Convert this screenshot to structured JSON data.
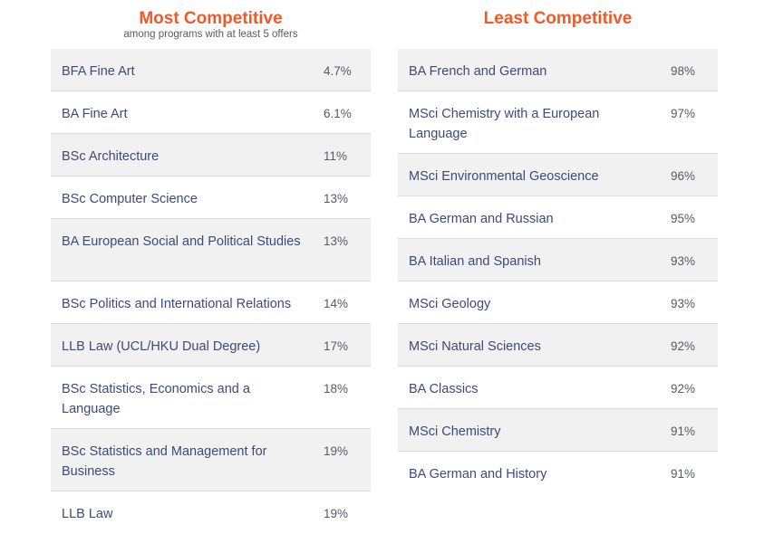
{
  "most": {
    "title": "Most Competitive",
    "subtitle": "among programs with at least 5 offers",
    "rows": [
      {
        "name": "BFA Fine Art",
        "pct": "4.7%"
      },
      {
        "name": "BA Fine Art",
        "pct": "6.1%"
      },
      {
        "name": "BSc Architecture",
        "pct": "11%"
      },
      {
        "name": "BSc Computer Science",
        "pct": "13%"
      },
      {
        "name": "BA European Social and Political Studies",
        "pct": "13%"
      },
      {
        "name": "BSc Politics and International Relations",
        "pct": "14%"
      },
      {
        "name": "LLB Law (UCL/HKU Dual Degree)",
        "pct": "17%"
      },
      {
        "name": "BSc Statistics, Economics and a Language",
        "pct": "18%"
      },
      {
        "name": "BSc Statistics and Management for Business",
        "pct": "19%"
      },
      {
        "name": "LLB Law",
        "pct": "19%"
      }
    ]
  },
  "least": {
    "title": "Least Competitive",
    "rows": [
      {
        "name": "BA French and German",
        "pct": "98%"
      },
      {
        "name": "MSci Chemistry with a European Language",
        "pct": "97%"
      },
      {
        "name": "MSci Environmental Geoscience",
        "pct": "96%"
      },
      {
        "name": "BA German and Russian",
        "pct": "95%"
      },
      {
        "name": "BA Italian and Spanish",
        "pct": "93%"
      },
      {
        "name": "MSci Geology",
        "pct": "93%"
      },
      {
        "name": "MSci Natural Sciences",
        "pct": "92%"
      },
      {
        "name": "BA Classics",
        "pct": "92%"
      },
      {
        "name": "MSci Chemistry",
        "pct": "91%"
      },
      {
        "name": "BA German and History",
        "pct": "91%"
      }
    ]
  }
}
